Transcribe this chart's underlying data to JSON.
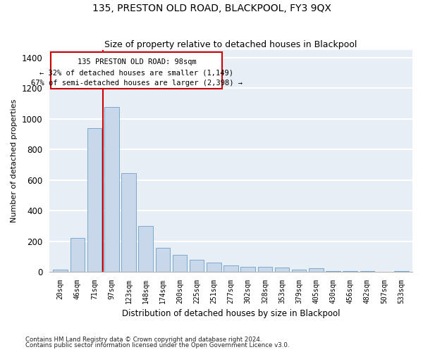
{
  "title": "135, PRESTON OLD ROAD, BLACKPOOL, FY3 9QX",
  "subtitle": "Size of property relative to detached houses in Blackpool",
  "xlabel": "Distribution of detached houses by size in Blackpool",
  "ylabel": "Number of detached properties",
  "bar_color": "#c8d8ea",
  "bar_edge_color": "#7aaacb",
  "bg_color": "#e8eef5",
  "grid_color": "#ffffff",
  "vline_color": "#cc0000",
  "vline_bin_index": 3,
  "ann_line1": "135 PRESTON OLD ROAD: 98sqm",
  "ann_line2": "← 32% of detached houses are smaller (1,149)",
  "ann_line3": "67% of semi-detached houses are larger (2,398) →",
  "categories": [
    "20sqm",
    "46sqm",
    "71sqm",
    "97sqm",
    "123sqm",
    "148sqm",
    "174sqm",
    "200sqm",
    "225sqm",
    "251sqm",
    "277sqm",
    "302sqm",
    "328sqm",
    "353sqm",
    "379sqm",
    "405sqm",
    "430sqm",
    "456sqm",
    "482sqm",
    "507sqm",
    "533sqm"
  ],
  "values": [
    15,
    220,
    940,
    1075,
    645,
    300,
    155,
    110,
    80,
    60,
    40,
    35,
    35,
    30,
    15,
    25,
    5,
    5,
    5,
    0,
    5
  ],
  "ylim": [
    0,
    1450
  ],
  "yticks": [
    0,
    200,
    400,
    600,
    800,
    1000,
    1200,
    1400
  ],
  "footnote1": "Contains HM Land Registry data © Crown copyright and database right 2024.",
  "footnote2": "Contains public sector information licensed under the Open Government Licence v3.0."
}
